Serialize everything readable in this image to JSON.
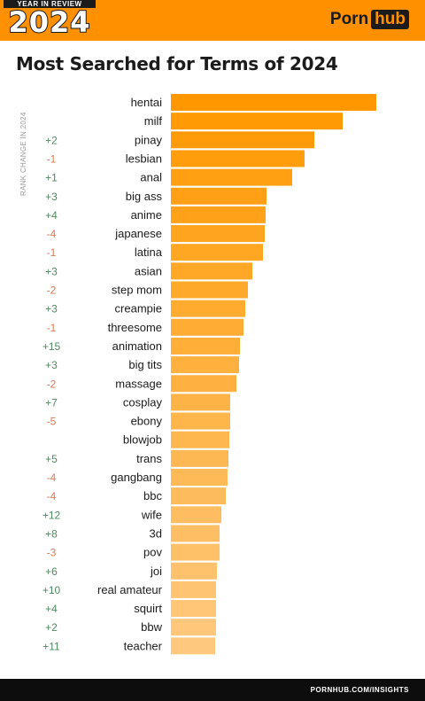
{
  "header": {
    "badge_top": "YEAR IN REVIEW",
    "badge_year": "2024",
    "brand_left": "Porn",
    "brand_right": "hub",
    "background_color": "#ff9000"
  },
  "footer": {
    "url": "PORNHUB.COM/INSIGHTS"
  },
  "chart_data": {
    "type": "bar",
    "orientation": "horizontal",
    "title": "Most Searched for Terms of 2024",
    "side_label": "RANK CHANGE IN 2024",
    "categories": [
      "hentai",
      "milf",
      "pinay",
      "lesbian",
      "anal",
      "big ass",
      "anime",
      "japanese",
      "latina",
      "asian",
      "step mom",
      "creampie",
      "threesome",
      "animation",
      "big tits",
      "massage",
      "cosplay",
      "ebony",
      "blowjob",
      "trans",
      "gangbang",
      "bbc",
      "wife",
      "3d",
      "pov",
      "joi",
      "real amateur",
      "squirt",
      "bbw",
      "teacher"
    ],
    "values": [
      232,
      194,
      162,
      151,
      137,
      108,
      107,
      106,
      104,
      92,
      87,
      84,
      82,
      78,
      77,
      74,
      67,
      67,
      66,
      65,
      64,
      62,
      57,
      55,
      55,
      52,
      51,
      51,
      51,
      50
    ],
    "rank_change": [
      "",
      "",
      "+2",
      "-1",
      "+1",
      "+3",
      "+4",
      "-4",
      "-1",
      "+3",
      "-2",
      "+3",
      "-1",
      "+15",
      "+3",
      "-2",
      "+7",
      "-5",
      "",
      "+5",
      "-4",
      "-4",
      "+12",
      "+8",
      "-3",
      "+6",
      "+10",
      "+4",
      "+2",
      "+11"
    ],
    "bar_color_start": "#ff9800",
    "bar_color_end": "#fec97e",
    "positive_color": "#4e8a5f",
    "negative_color": "#e07a52",
    "grid": false
  }
}
